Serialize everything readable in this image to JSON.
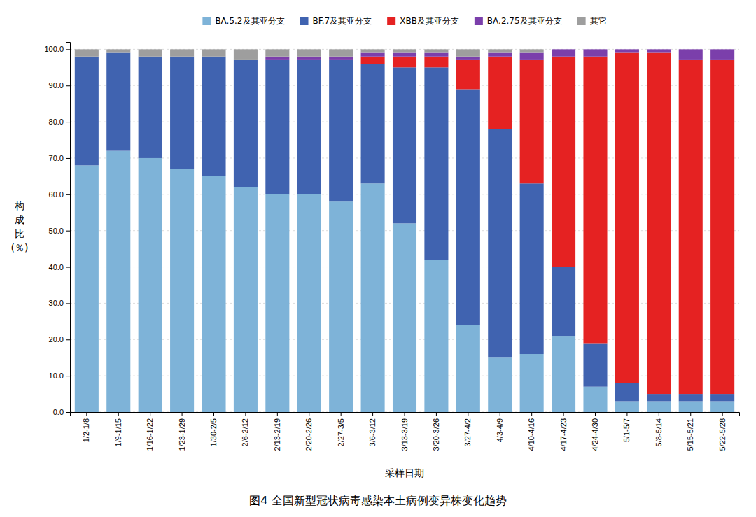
{
  "chart_data": {
    "type": "bar",
    "stacked": true,
    "title": "图4 全国新型冠状病毒感染本土病例变异株变化趋势",
    "x_label": "采样日期",
    "y_label": "构\n成\n比\n(％)",
    "categories": [
      "1/2-1/8",
      "1/9-1/15",
      "1/16-1/22",
      "1/23-1/29",
      "1/30-2/5",
      "2/6-2/12",
      "2/13-2/19",
      "2/20-2/26",
      "2/27-3/5",
      "3/6-3/12",
      "3/13-3/19",
      "3/20-3/26",
      "3/27-4/2",
      "4/3-4/9",
      "4/10-4/16",
      "4/17-4/23",
      "4/24-4/30",
      "5/1-5/7",
      "5/8-5/14",
      "5/15-5/21",
      "5/22-5/28"
    ],
    "series": [
      {
        "name": "BA.5.2及其亚分支",
        "color": "#7EB3D8",
        "values": [
          68,
          72,
          70,
          67,
          65,
          62,
          60,
          60,
          58,
          63,
          52,
          42,
          24,
          15,
          16,
          21,
          7,
          3,
          3,
          3,
          3
        ]
      },
      {
        "name": "BF.7及其亚分支",
        "color": "#4063B0",
        "values": [
          30,
          27,
          28,
          31,
          33,
          35,
          37,
          37,
          39,
          33,
          43,
          53,
          65,
          63,
          47,
          19,
          12,
          5,
          2,
          2,
          2
        ]
      },
      {
        "name": "XBB及其亚分支",
        "color": "#E52222",
        "values": [
          0,
          0,
          0,
          0,
          0,
          0,
          0,
          0,
          0,
          2,
          3,
          3,
          8,
          20,
          34,
          58,
          79,
          91,
          94,
          92,
          92
        ]
      },
      {
        "name": "BA.2.75及其亚分支",
        "color": "#7B3FAB",
        "values": [
          0,
          0,
          0,
          0,
          0,
          0,
          1,
          1,
          1,
          1,
          1,
          1,
          1,
          1,
          2,
          2,
          2,
          1,
          1,
          3,
          3
        ]
      },
      {
        "name": "其它",
        "color": "#9E9E9E",
        "values": [
          2,
          1,
          2,
          2,
          2,
          3,
          2,
          2,
          2,
          1,
          1,
          1,
          2,
          1,
          1,
          0,
          0,
          0,
          0,
          0,
          0
        ]
      }
    ],
    "ylim": [
      0,
      102
    ],
    "yticks": [
      {
        "value": 0,
        "label": "0.0"
      },
      {
        "value": 10,
        "label": "10.0"
      },
      {
        "value": 20,
        "label": "20.0"
      },
      {
        "value": 30,
        "label": "30.0"
      },
      {
        "value": 40,
        "label": "40.0"
      },
      {
        "value": 50,
        "label": "50.0"
      },
      {
        "value": 60,
        "label": "60.0"
      },
      {
        "value": 70,
        "label": "70.0"
      },
      {
        "value": 80,
        "label": "80.0"
      },
      {
        "value": 90,
        "label": "90.0"
      },
      {
        "value": 100,
        "label": "100.0"
      }
    ],
    "grid": true,
    "legend": "top"
  }
}
